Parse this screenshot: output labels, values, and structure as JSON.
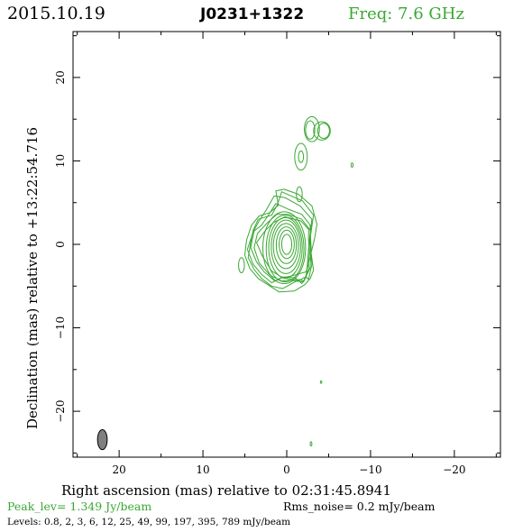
{
  "header": {
    "date": "2015.10.19",
    "source": "J0231+1322",
    "frequency": "Freq: 7.6 GHz"
  },
  "chart_data": {
    "type": "contour",
    "xlabel": "Right ascension (mas) relative to 02:31:45.8941",
    "ylabel": "Declination (mas) relative to +13:22:54.716",
    "xlim": [
      25.5,
      -25.5
    ],
    "ylim": [
      -25.5,
      25.5
    ],
    "x_ticks": [
      20,
      10,
      0,
      -10,
      -20
    ],
    "y_ticks": [
      20,
      10,
      0,
      -10,
      -20
    ],
    "x_tick_labels": [
      "20",
      "10",
      "0",
      "−10",
      "−20"
    ],
    "y_tick_labels": [
      "20",
      "10",
      "0",
      "−10",
      "−20"
    ],
    "peak_label": "Peak_lev=  1.349 Jy/beam",
    "rms_label": "Rms_noise=  0.2 mJy/beam",
    "levels_label": "Levels: 0.8,    2,    3,    6,   12,   25,   49,   99, 197, 395, 789 mJy/beam",
    "levels_mJy": [
      0.8,
      2,
      3,
      6,
      12,
      25,
      49,
      99,
      197,
      395,
      789
    ],
    "core_contours": [
      {
        "cx": 0.0,
        "cy": 0.0,
        "rx": 0.6,
        "ry": 1.2
      },
      {
        "cx": 0.0,
        "cy": 0.0,
        "rx": 0.9,
        "ry": 1.7
      },
      {
        "cx": 0.05,
        "cy": -0.1,
        "rx": 1.2,
        "ry": 2.2
      },
      {
        "cx": 0.1,
        "cy": -0.2,
        "rx": 1.5,
        "ry": 2.7
      },
      {
        "cx": 0.1,
        "cy": -0.3,
        "rx": 1.75,
        "ry": 3.2
      },
      {
        "cx": 0.15,
        "cy": -0.4,
        "rx": 2.0,
        "ry": 3.6
      },
      {
        "cx": 0.2,
        "cy": -0.5,
        "rx": 2.25,
        "ry": 4.0
      },
      {
        "cx": 0.3,
        "cy": -0.4,
        "rx": 2.55,
        "ry": 4.3
      }
    ],
    "outer_contours": [
      {
        "points": [
          [
            -0.5,
            -3.8
          ],
          [
            -2.3,
            -3.3
          ],
          [
            -2.8,
            -1.5
          ],
          [
            -2.6,
            0.5
          ],
          [
            -2.6,
            1.8
          ],
          [
            -1.7,
            2.8
          ],
          [
            0.2,
            3.3
          ],
          [
            1.6,
            2.6
          ],
          [
            2.6,
            1.6
          ],
          [
            3.6,
            0.2
          ],
          [
            2.9,
            -1.4
          ],
          [
            1.8,
            -3.2
          ],
          [
            0.5,
            -4.0
          ]
        ]
      },
      {
        "points": [
          [
            -0.3,
            -4.3
          ],
          [
            -2.0,
            -4.5
          ],
          [
            -2.8,
            -2.8
          ],
          [
            -2.9,
            -0.4
          ],
          [
            -2.8,
            1.7
          ],
          [
            -1.8,
            3.0
          ],
          [
            -0.2,
            3.6
          ],
          [
            1.2,
            3.6
          ],
          [
            2.4,
            2.5
          ],
          [
            3.5,
            1.3
          ],
          [
            3.9,
            -0.4
          ],
          [
            3.3,
            -2.2
          ],
          [
            2.0,
            -3.7
          ],
          [
            0.6,
            -4.4
          ]
        ]
      },
      {
        "points": [
          [
            -2.3,
            -3.9
          ],
          [
            -2.6,
            -4.2
          ],
          [
            -3.0,
            -2.4
          ],
          [
            -2.8,
            0.0
          ],
          [
            -2.8,
            2.3
          ],
          [
            -1.8,
            3.6
          ],
          [
            -0.2,
            4.2
          ],
          [
            1.3,
            4.9
          ],
          [
            2.2,
            3.5
          ],
          [
            3.0,
            2.3
          ],
          [
            3.9,
            1.6
          ],
          [
            4.3,
            -0.4
          ],
          [
            3.6,
            -2.1
          ],
          [
            2.7,
            -3.3
          ],
          [
            1.4,
            -4.4
          ],
          [
            0.5,
            -3.9
          ],
          [
            -1.0,
            -4.0
          ],
          [
            -1.8,
            -4.7
          ]
        ]
      },
      {
        "points": [
          [
            -2.0,
            -4.0
          ],
          [
            -2.3,
            -4.0
          ],
          [
            -2.5,
            -2.0
          ],
          [
            -2.7,
            0.5
          ],
          [
            -3.0,
            3.0
          ],
          [
            -1.6,
            4.6
          ],
          [
            0.2,
            5.6
          ],
          [
            1.5,
            5.8
          ],
          [
            2.4,
            4.2
          ],
          [
            3.3,
            2.8
          ],
          [
            4.0,
            1.5
          ],
          [
            4.7,
            -0.6
          ],
          [
            4.0,
            -2.4
          ],
          [
            3.0,
            -3.6
          ],
          [
            1.8,
            -4.6
          ],
          [
            0.6,
            -4.0
          ],
          [
            -0.8,
            -4.2
          ],
          [
            -1.6,
            -4.3
          ]
        ]
      },
      {
        "points": [
          [
            -1.5,
            -4.2
          ],
          [
            -2.0,
            -4.4
          ],
          [
            -2.6,
            -3.0
          ],
          [
            -2.6,
            -0.6
          ],
          [
            -2.9,
            1.5
          ],
          [
            -3.2,
            3.5
          ],
          [
            -1.9,
            5.2
          ],
          [
            0.6,
            6.3
          ],
          [
            1.1,
            4.8
          ],
          [
            1.8,
            3.5
          ],
          [
            3.4,
            3.0
          ],
          [
            4.0,
            1.7
          ],
          [
            4.3,
            0.2
          ],
          [
            4.6,
            -1.6
          ],
          [
            3.9,
            -3.0
          ],
          [
            3.0,
            -4.1
          ],
          [
            1.8,
            -5.0
          ],
          [
            0.5,
            -5.3
          ],
          [
            -0.8,
            -4.6
          ]
        ]
      },
      {
        "points": [
          [
            -2.8,
            -4.1
          ],
          [
            -3.2,
            -3.1
          ],
          [
            -2.9,
            -1.0
          ],
          [
            -3.3,
            0.6
          ],
          [
            -3.6,
            2.4
          ],
          [
            -3.0,
            4.6
          ],
          [
            -1.4,
            6.0
          ],
          [
            0.3,
            6.6
          ],
          [
            1.3,
            6.4
          ],
          [
            1.0,
            4.7
          ],
          [
            2.0,
            3.8
          ],
          [
            3.3,
            3.4
          ],
          [
            4.2,
            2.3
          ],
          [
            4.8,
            0.5
          ],
          [
            5.0,
            -1.3
          ],
          [
            4.4,
            -2.9
          ],
          [
            3.4,
            -4.1
          ],
          [
            2.3,
            -4.8
          ],
          [
            0.9,
            -5.7
          ],
          [
            -0.9,
            -5.6
          ],
          [
            -2.2,
            -4.8
          ]
        ]
      }
    ],
    "small_contours": [
      {
        "cx": 5.4,
        "cy": -2.5,
        "rx": 0.35,
        "ry": 0.9
      },
      {
        "cx": -1.5,
        "cy": 6.0,
        "rx": 0.35,
        "ry": 0.9
      },
      {
        "cx": -1.7,
        "cy": 10.5,
        "rx": 0.75,
        "ry": 1.6
      },
      {
        "cx": -1.7,
        "cy": 10.5,
        "rx": 0.3,
        "ry": 0.7
      },
      {
        "cx": -2.8,
        "cy": 13.7,
        "rx": 0.55,
        "ry": 1.1
      },
      {
        "cx": -3.0,
        "cy": 13.8,
        "rx": 0.9,
        "ry": 1.5
      },
      {
        "cx": -4.4,
        "cy": 13.6,
        "rx": 0.7,
        "ry": 0.9
      },
      {
        "cx": -4.2,
        "cy": 13.6,
        "rx": 1.0,
        "ry": 1.1
      },
      {
        "cx": -7.8,
        "cy": 9.5,
        "rx": 0.12,
        "ry": 0.25
      },
      {
        "cx": -4.1,
        "cy": -16.5,
        "rx": 0.08,
        "ry": 0.15
      },
      {
        "cx": -2.9,
        "cy": -23.9,
        "rx": 0.1,
        "ry": 0.25
      }
    ],
    "beam": {
      "x": 22.0,
      "y": -23.4,
      "major": 2.4,
      "minor": 1.15
    },
    "colors": {
      "contour": "#3aa832",
      "beam_fill": "#7f7f7f",
      "axis": "#000000",
      "accent": "#3aa832"
    }
  }
}
